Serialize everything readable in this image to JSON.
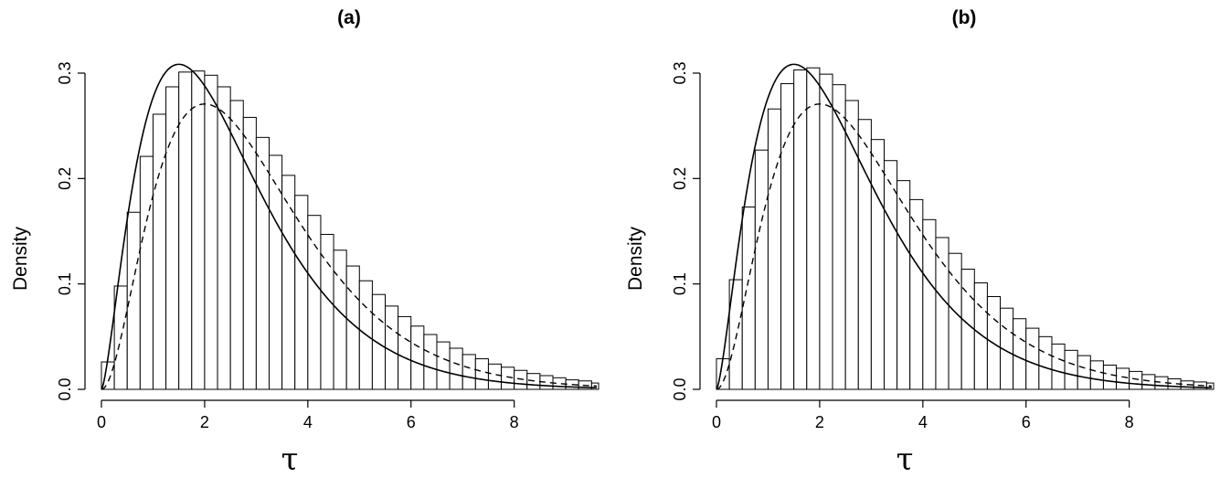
{
  "chart_data": [
    {
      "type": "bar",
      "panel": "a",
      "title": "(a)",
      "xlabel": "τ",
      "ylabel": "Density",
      "xlim": [
        0,
        9.6
      ],
      "ylim": [
        0,
        0.3
      ],
      "xticks": [
        "0",
        "2",
        "4",
        "6",
        "8"
      ],
      "yticks": [
        "0.0",
        "0.1",
        "0.2",
        "0.3"
      ],
      "bin_width": 0.25,
      "bin_start": 0,
      "histogram_values": [
        0.026,
        0.098,
        0.168,
        0.221,
        0.261,
        0.287,
        0.301,
        0.302,
        0.298,
        0.287,
        0.274,
        0.258,
        0.239,
        0.222,
        0.203,
        0.184,
        0.165,
        0.147,
        0.132,
        0.117,
        0.103,
        0.09,
        0.079,
        0.069,
        0.06,
        0.052,
        0.045,
        0.039,
        0.033,
        0.029,
        0.024,
        0.021,
        0.018,
        0.015,
        0.013,
        0.011,
        0.009,
        0.008,
        0.006
      ],
      "solid_curve": {
        "shape": 2.5,
        "scale": 1.0,
        "peak_x": 1.5,
        "peak_y": 0.308
      },
      "dashed_curve": {
        "shape": 3.0,
        "scale": 1.0,
        "peak_x": 2.0,
        "peak_y": 0.271
      },
      "grid": false,
      "legend": "none"
    },
    {
      "type": "bar",
      "panel": "b",
      "title": "(b)",
      "xlabel": "τ",
      "ylabel": "Density",
      "xlim": [
        0,
        9.6
      ],
      "ylim": [
        0,
        0.3
      ],
      "xticks": [
        "0",
        "2",
        "4",
        "6",
        "8"
      ],
      "yticks": [
        "0.0",
        "0.1",
        "0.2",
        "0.3"
      ],
      "bin_width": 0.25,
      "bin_start": 0,
      "histogram_values": [
        0.029,
        0.104,
        0.173,
        0.227,
        0.266,
        0.29,
        0.303,
        0.305,
        0.299,
        0.289,
        0.274,
        0.256,
        0.237,
        0.217,
        0.198,
        0.18,
        0.161,
        0.144,
        0.129,
        0.114,
        0.101,
        0.088,
        0.077,
        0.067,
        0.058,
        0.05,
        0.043,
        0.037,
        0.032,
        0.027,
        0.023,
        0.02,
        0.017,
        0.014,
        0.012,
        0.01,
        0.008,
        0.007,
        0.006
      ],
      "solid_curve": {
        "shape": 2.5,
        "scale": 1.0,
        "peak_x": 1.5,
        "peak_y": 0.308
      },
      "dashed_curve": {
        "shape": 3.0,
        "scale": 1.0,
        "peak_x": 2.0,
        "peak_y": 0.271
      },
      "grid": false,
      "legend": "none"
    }
  ]
}
